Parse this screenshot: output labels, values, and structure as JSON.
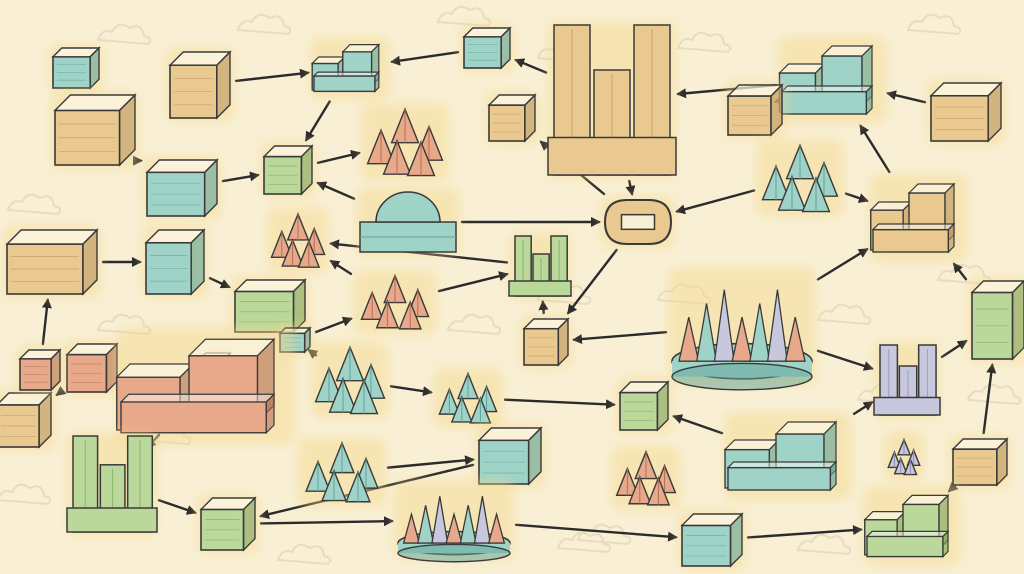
{
  "palette": {
    "paper": "#f8efd4",
    "ink": "#2b2b2b",
    "teal": "#9fd3c7",
    "teal_dark": "#5fa39a",
    "sand": "#e9c98f",
    "sand_dark": "#b9935c",
    "green": "#b9d89a",
    "green_dark": "#7ca35e",
    "rose": "#e8a88a",
    "rose_dark": "#b36f55",
    "lavender": "#c7c7dd",
    "lavender_dark": "#8e8eae",
    "glow": "#f5d98a",
    "cloud": "#e8dcc0"
  },
  "nodes": [
    {
      "id": "n-top-left-teal-box",
      "kind": "box",
      "color": "teal"
    },
    {
      "id": "n-left-tan-building",
      "kind": "building",
      "color": "sand"
    },
    {
      "id": "n-tall-tan-block",
      "kind": "box",
      "color": "sand"
    },
    {
      "id": "n-top-teal-complex",
      "kind": "complex",
      "color": "teal"
    },
    {
      "id": "n-top-small-teal",
      "kind": "box",
      "color": "teal"
    },
    {
      "id": "n-central-tan-tower",
      "kind": "tower",
      "color": "sand"
    },
    {
      "id": "n-small-tan-prism",
      "kind": "box",
      "color": "sand"
    },
    {
      "id": "n-top-right-teal-complex",
      "kind": "complex",
      "color": "teal"
    },
    {
      "id": "n-right-tan-hut",
      "kind": "box",
      "color": "sand"
    },
    {
      "id": "n-right-corner-tan",
      "kind": "box",
      "color": "sand"
    },
    {
      "id": "n-left-teal-pair",
      "kind": "box",
      "color": "teal"
    },
    {
      "id": "n-green-cube-1",
      "kind": "box",
      "color": "green"
    },
    {
      "id": "n-rose-rock-cluster",
      "kind": "cluster",
      "color": "rose"
    },
    {
      "id": "n-teal-dome",
      "kind": "dome",
      "color": "teal"
    },
    {
      "id": "n-glowing-loop",
      "kind": "loop",
      "color": "sand"
    },
    {
      "id": "n-right-teal-crystal",
      "kind": "cluster",
      "color": "teal"
    },
    {
      "id": "n-left-sand-crates",
      "kind": "box",
      "color": "sand"
    },
    {
      "id": "n-teal-spire-box",
      "kind": "box",
      "color": "teal"
    },
    {
      "id": "n-rose-tree",
      "kind": "cluster",
      "color": "rose"
    },
    {
      "id": "n-green-cylinder-stack",
      "kind": "tower",
      "color": "green"
    },
    {
      "id": "n-right-sand-fortress",
      "kind": "complex",
      "color": "sand"
    },
    {
      "id": "n-green-tech-box",
      "kind": "box",
      "color": "green"
    },
    {
      "id": "n-teal-connector",
      "kind": "box",
      "color": "teal"
    },
    {
      "id": "n-rose-scatter",
      "kind": "cluster",
      "color": "rose"
    },
    {
      "id": "n-small-sand-cube",
      "kind": "box",
      "color": "sand"
    },
    {
      "id": "n-central-crystal-platform",
      "kind": "platform",
      "color": "teal"
    },
    {
      "id": "n-lavender-tower",
      "kind": "tower",
      "color": "lavender"
    },
    {
      "id": "n-far-right-green",
      "kind": "box",
      "color": "green"
    },
    {
      "id": "n-rose-small-left",
      "kind": "box",
      "color": "rose"
    },
    {
      "id": "n-lavender-left-wall",
      "kind": "box",
      "color": "lavender"
    },
    {
      "id": "n-large-rose-complex",
      "kind": "complex",
      "color": "rose"
    },
    {
      "id": "n-teal-tent",
      "kind": "cluster",
      "color": "teal"
    },
    {
      "id": "n-teal-crystal-shards",
      "kind": "cluster",
      "color": "teal"
    },
    {
      "id": "n-green-mid-cube",
      "kind": "box",
      "color": "green"
    },
    {
      "id": "n-teal-wide-block",
      "kind": "complex",
      "color": "teal"
    },
    {
      "id": "n-rose-shard",
      "kind": "cluster",
      "color": "lavender"
    },
    {
      "id": "n-green-obelisk",
      "kind": "tower",
      "color": "green"
    },
    {
      "id": "n-teal-pond-scene",
      "kind": "cluster",
      "color": "teal"
    },
    {
      "id": "n-teal-face-box",
      "kind": "box",
      "color": "teal"
    },
    {
      "id": "n-rose-sled",
      "kind": "cluster",
      "color": "rose"
    },
    {
      "id": "n-sand-right-block",
      "kind": "box",
      "color": "sand"
    },
    {
      "id": "n-green-cube-2",
      "kind": "box",
      "color": "green"
    },
    {
      "id": "n-teal-spike-crown",
      "kind": "platform",
      "color": "teal"
    },
    {
      "id": "n-teal-small-bottom",
      "kind": "box",
      "color": "teal"
    },
    {
      "id": "n-green-bottom-right",
      "kind": "complex",
      "color": "green"
    },
    {
      "id": "n-tan-left-edge",
      "kind": "box",
      "color": "sand"
    },
    {
      "id": "n-left-rose-box",
      "kind": "box",
      "color": "rose"
    }
  ],
  "edges": [
    [
      "n-tall-tan-block",
      "n-top-teal-complex"
    ],
    [
      "n-top-small-teal",
      "n-top-teal-complex"
    ],
    [
      "n-central-tan-tower",
      "n-top-small-teal"
    ],
    [
      "n-top-right-teal-complex",
      "n-central-tan-tower"
    ],
    [
      "n-right-tan-hut",
      "n-top-right-teal-complex"
    ],
    [
      "n-right-corner-tan",
      "n-top-right-teal-complex"
    ],
    [
      "n-top-teal-complex",
      "n-green-cube-1"
    ],
    [
      "n-left-teal-pair",
      "n-left-tan-building"
    ],
    [
      "n-left-teal-pair",
      "n-green-cube-1"
    ],
    [
      "n-green-cube-1",
      "n-rose-rock-cluster"
    ],
    [
      "n-teal-dome",
      "n-green-cube-1"
    ],
    [
      "n-teal-dome",
      "n-glowing-loop"
    ],
    [
      "n-central-tan-tower",
      "n-glowing-loop"
    ],
    [
      "n-glowing-loop",
      "n-small-tan-prism"
    ],
    [
      "n-right-teal-crystal",
      "n-glowing-loop"
    ],
    [
      "n-right-teal-crystal",
      "n-right-sand-fortress"
    ],
    [
      "n-right-sand-fortress",
      "n-top-right-teal-complex"
    ],
    [
      "n-central-crystal-platform",
      "n-right-sand-fortress"
    ],
    [
      "n-left-sand-crates",
      "n-teal-spire-box"
    ],
    [
      "n-teal-spire-box",
      "n-green-tech-box"
    ],
    [
      "n-rose-scatter",
      "n-green-cylinder-stack"
    ],
    [
      "n-green-cylinder-stack",
      "n-rose-tree"
    ],
    [
      "n-rose-scatter",
      "n-rose-tree"
    ],
    [
      "n-teal-connector",
      "n-rose-scatter"
    ],
    [
      "n-glowing-loop",
      "n-small-sand-cube"
    ],
    [
      "n-central-crystal-platform",
      "n-small-sand-cube"
    ],
    [
      "n-central-crystal-platform",
      "n-lavender-tower"
    ],
    [
      "n-lavender-tower",
      "n-far-right-green"
    ],
    [
      "n-far-right-green",
      "n-right-sand-fortress"
    ],
    [
      "n-teal-crystal-shards",
      "n-green-mid-cube"
    ],
    [
      "n-teal-tent",
      "n-teal-crystal-shards"
    ],
    [
      "n-teal-wide-block",
      "n-green-mid-cube"
    ],
    [
      "n-teal-wide-block",
      "n-lavender-tower"
    ],
    [
      "n-green-obelisk",
      "n-large-rose-complex"
    ],
    [
      "n-teal-pond-scene",
      "n-teal-face-box"
    ],
    [
      "n-green-obelisk",
      "n-green-cube-2"
    ],
    [
      "n-green-cube-2",
      "n-teal-spike-crown"
    ],
    [
      "n-teal-spike-crown",
      "n-teal-small-bottom"
    ],
    [
      "n-teal-small-bottom",
      "n-green-bottom-right"
    ],
    [
      "n-green-bottom-right",
      "n-sand-right-block"
    ],
    [
      "n-sand-right-block",
      "n-far-right-green"
    ],
    [
      "n-teal-face-box",
      "n-green-cube-2"
    ],
    [
      "n-teal-connector",
      "n-teal-tent"
    ],
    [
      "n-rose-small-left",
      "n-tan-left-edge"
    ],
    [
      "n-left-rose-box",
      "n-left-sand-crates"
    ],
    [
      "n-small-sand-cube",
      "n-green-cylinder-stack"
    ]
  ]
}
